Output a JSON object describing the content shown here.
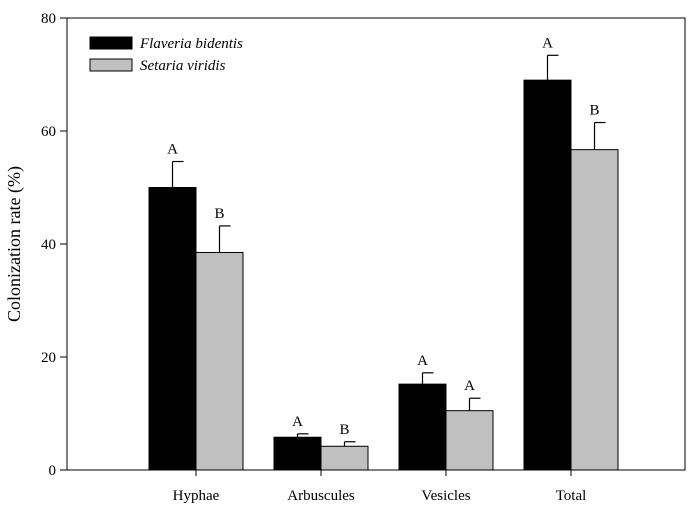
{
  "chart_data": {
    "type": "bar",
    "title": "",
    "xlabel": "",
    "ylabel": "Colonization rate (%)",
    "ylim": [
      0,
      80
    ],
    "yticks": [
      0,
      20,
      40,
      60,
      80
    ],
    "categories": [
      "Hyphae",
      "Arbuscules",
      "Vesicles",
      "Total"
    ],
    "series": [
      {
        "name": "Flaveria bidentis",
        "color": "#000000",
        "values": [
          50.0,
          5.8,
          15.2,
          69.0
        ],
        "errors": [
          4.6,
          0.6,
          2.0,
          4.4
        ],
        "significance": [
          "A",
          "A",
          "A",
          "A"
        ]
      },
      {
        "name": "Setaria viridis",
        "color": "#c0c0c0",
        "values": [
          38.5,
          4.2,
          10.5,
          56.7
        ],
        "errors": [
          4.7,
          0.8,
          2.2,
          4.8
        ],
        "significance": [
          "B",
          "B",
          "A",
          "B"
        ]
      }
    ],
    "legend_position": "top-left",
    "grid": false
  }
}
